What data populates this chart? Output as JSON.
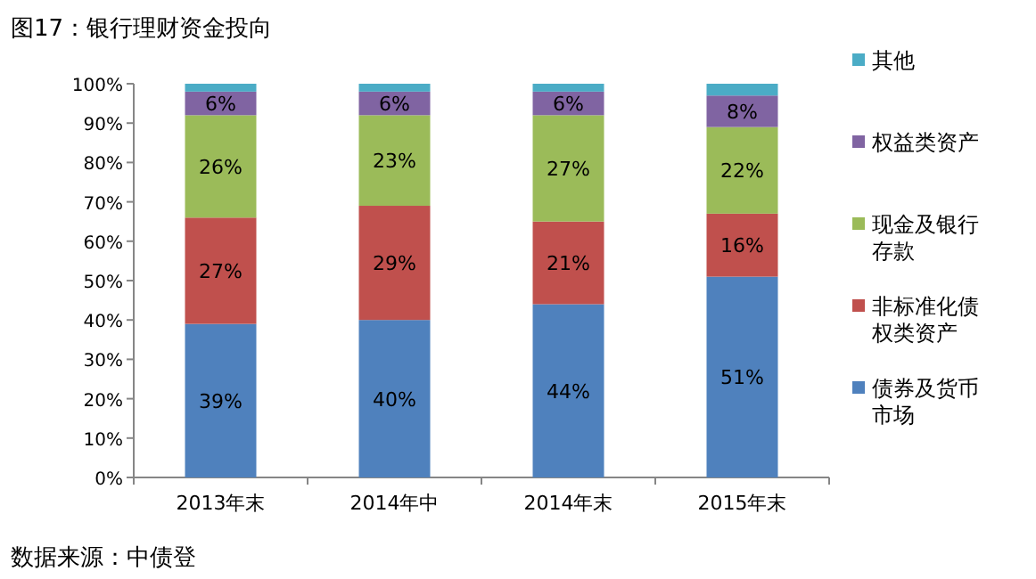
{
  "chart_data": {
    "type": "bar",
    "stacked": true,
    "title": "图17：银行理财资金投向",
    "categories": [
      "2013年末",
      "2014年中",
      "2014年末",
      "2015年末"
    ],
    "series": [
      {
        "name": "债券及货币市场",
        "color": "#4f81bd",
        "values": [
          39,
          40,
          44,
          51
        ],
        "value_labels": [
          "39%",
          "40%",
          "44%",
          "51%"
        ]
      },
      {
        "name": "非标准化债权类资产",
        "color": "#c0504d",
        "values": [
          27,
          29,
          21,
          16
        ],
        "value_labels": [
          "27%",
          "29%",
          "21%",
          "16%"
        ]
      },
      {
        "name": "现金及银行存款",
        "color": "#9bbb59",
        "values": [
          26,
          23,
          27,
          22
        ],
        "value_labels": [
          "26%",
          "23%",
          "27%",
          "22%"
        ]
      },
      {
        "name": "权益类资产",
        "color": "#8064a2",
        "values": [
          6,
          6,
          6,
          8
        ],
        "value_labels": [
          "6%",
          "6%",
          "6%",
          "8%"
        ]
      },
      {
        "name": "其他",
        "color": "#4bacc6",
        "values": [
          2,
          2,
          2,
          3
        ]
      }
    ],
    "ylim": [
      0,
      100
    ],
    "yticks": [
      {
        "value": 0,
        "label": "0%"
      },
      {
        "value": 10,
        "label": "10%"
      },
      {
        "value": 20,
        "label": "20%"
      },
      {
        "value": 30,
        "label": "30%"
      },
      {
        "value": 40,
        "label": "40%"
      },
      {
        "value": 50,
        "label": "50%"
      },
      {
        "value": 60,
        "label": "60%"
      },
      {
        "value": 70,
        "label": "70%"
      },
      {
        "value": 80,
        "label": "80%"
      },
      {
        "value": 90,
        "label": "90%"
      },
      {
        "value": 100,
        "label": "100%"
      }
    ],
    "grid": false,
    "legend": "right",
    "annotations": [
      "数据来源：中债登"
    ]
  }
}
